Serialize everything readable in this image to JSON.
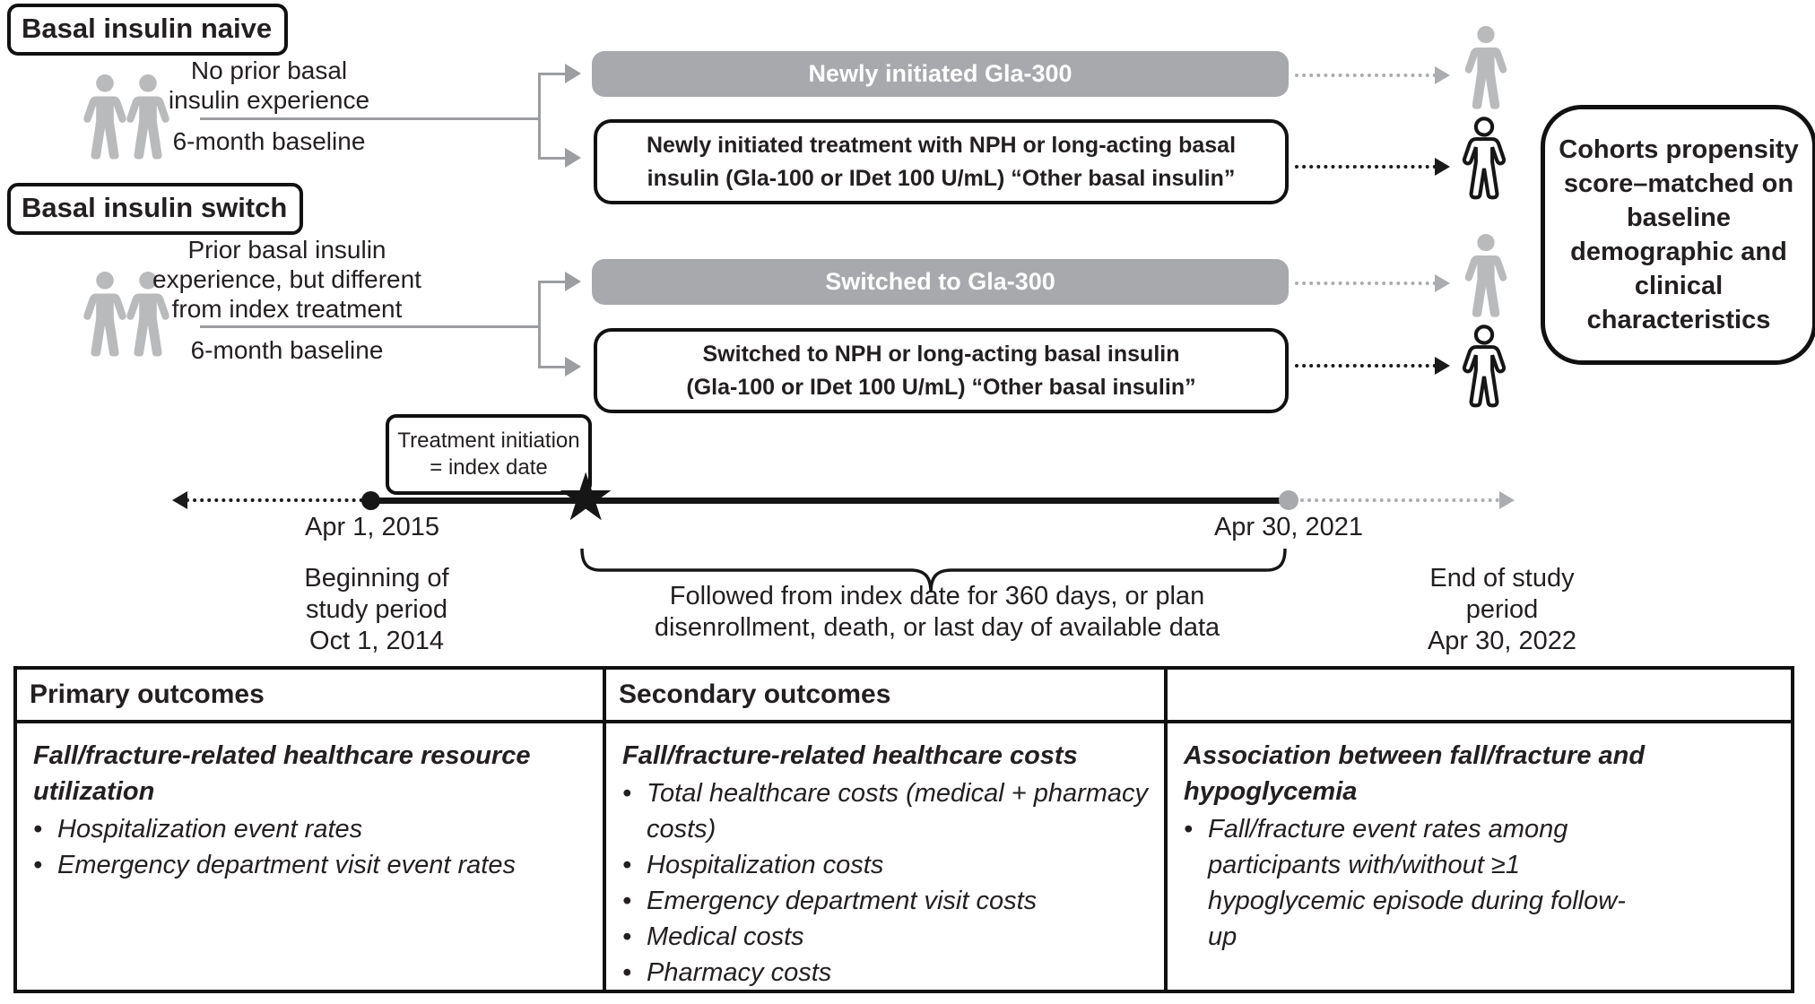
{
  "bullet_char": "•",
  "colors": {
    "bar_gray": "#a7a9ac",
    "icon_gray": "#b9babc",
    "connector_gray": "#9b9da0",
    "ink": "#161616"
  },
  "cohort_naive": {
    "label": "Basal insulin naive",
    "criteria_lines": [
      "No prior basal",
      "insulin experience"
    ],
    "baseline_label": "6-month baseline",
    "gla300_bar": "Newly initiated Gla-300",
    "other_box_lines": [
      "Newly initiated treatment with NPH or long-acting basal",
      "insulin (Gla-100 or IDet 100 U/mL) “Other basal insulin”"
    ]
  },
  "cohort_switch": {
    "label": "Basal insulin switch",
    "criteria_lines": [
      "Prior basal insulin",
      "experience, but different",
      "from index treatment"
    ],
    "baseline_label": "6-month baseline",
    "gla300_bar": "Switched to Gla-300",
    "other_box_lines": [
      "Switched to NPH or long-acting basal insulin",
      "(Gla-100 or IDet 100 U/mL) “Other basal insulin”"
    ]
  },
  "matching_note": {
    "lines": [
      "Cohorts propensity",
      "score–matched on",
      "baseline",
      "demographic and",
      "clinical",
      "characteristics"
    ]
  },
  "timeline": {
    "index_box_lines": [
      "Treatment initiation",
      "= index date"
    ],
    "index_start_date": "Apr 1, 2015",
    "index_end_date": "Apr 30, 2021",
    "study_start_lines": [
      "Beginning of",
      "study period",
      "Oct 1, 2014"
    ],
    "study_end_lines": [
      "End of study",
      "period",
      "Apr 30, 2022"
    ],
    "followup_lines": [
      "Followed from index date for 360 days, or plan",
      "disenrollment, death, or last day of available data"
    ]
  },
  "outcomes_table": {
    "headers": [
      "Primary outcomes",
      "Secondary outcomes",
      ""
    ],
    "primary": {
      "lead": "Fall/fracture-related healthcare resource utilization",
      "bullets": [
        "Hospitalization event rates",
        "Emergency department visit event rates"
      ]
    },
    "secondary": {
      "lead": "Fall/fracture-related healthcare costs",
      "bullets": [
        "Total healthcare costs (medical + pharmacy costs)",
        "Hospitalization costs",
        "Emergency department visit costs",
        "Medical costs",
        "Pharmacy costs"
      ]
    },
    "tertiary": {
      "lead": "Association between fall/fracture and hypoglycemia",
      "bullets": [
        "Fall/fracture event rates among participants with/without ≥1 hypoglycemic episode during follow-up"
      ]
    }
  }
}
